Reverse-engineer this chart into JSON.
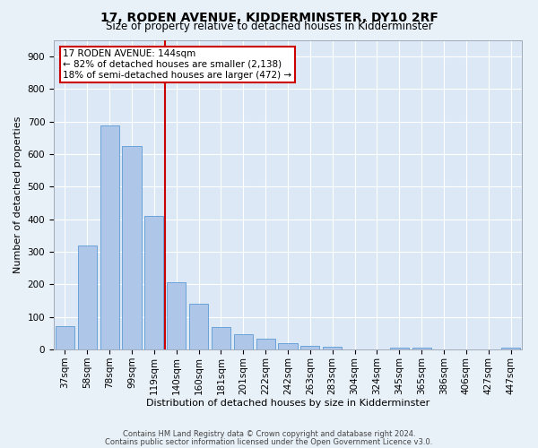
{
  "title": "17, RODEN AVENUE, KIDDERMINSTER, DY10 2RF",
  "subtitle": "Size of property relative to detached houses in Kidderminster",
  "xlabel": "Distribution of detached houses by size in Kidderminster",
  "ylabel": "Number of detached properties",
  "categories": [
    "37sqm",
    "58sqm",
    "78sqm",
    "99sqm",
    "119sqm",
    "140sqm",
    "160sqm",
    "181sqm",
    "201sqm",
    "222sqm",
    "242sqm",
    "263sqm",
    "283sqm",
    "304sqm",
    "324sqm",
    "345sqm",
    "365sqm",
    "386sqm",
    "406sqm",
    "427sqm",
    "447sqm"
  ],
  "values": [
    72,
    320,
    688,
    625,
    410,
    207,
    140,
    70,
    47,
    32,
    20,
    10,
    9,
    0,
    0,
    5,
    5,
    0,
    0,
    0,
    5
  ],
  "bar_color": "#aec6e8",
  "bar_edge_color": "#5b9bd5",
  "vline_x": 4.5,
  "highlight_color": "#cc0000",
  "property_label": "17 RODEN AVENUE: 144sqm",
  "annotation_line1": "← 82% of detached houses are smaller (2,138)",
  "annotation_line2": "18% of semi-detached houses are larger (472) →",
  "ylim": [
    0,
    950
  ],
  "yticks": [
    0,
    100,
    200,
    300,
    400,
    500,
    600,
    700,
    800,
    900
  ],
  "footnote1": "Contains HM Land Registry data © Crown copyright and database right 2024.",
  "footnote2": "Contains public sector information licensed under the Open Government Licence v3.0.",
  "bg_color": "#e8f0f8",
  "plot_bg_color": "#dce8f5",
  "grid_color": "#ffffff",
  "title_fontsize": 10,
  "subtitle_fontsize": 8.5,
  "axis_label_fontsize": 8,
  "tick_fontsize": 7.5,
  "annotation_fontsize": 7.5,
  "footnote_fontsize": 6,
  "annotation_box_color": "#cc0000"
}
